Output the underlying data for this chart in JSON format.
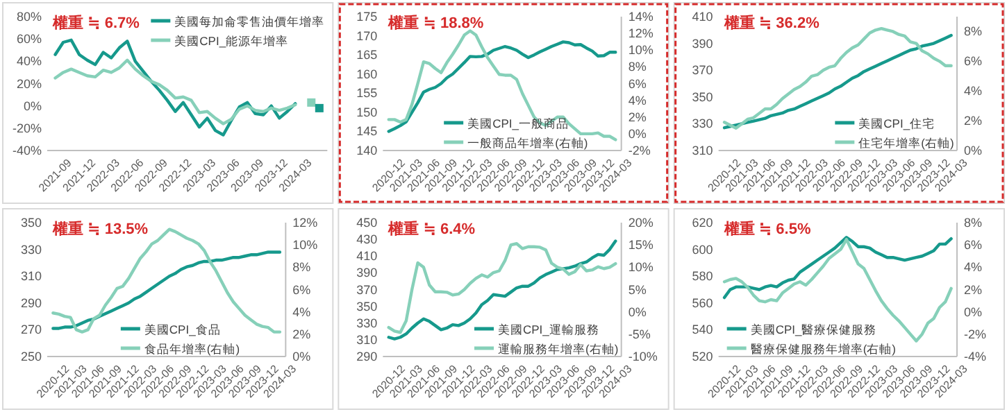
{
  "chart_data": [
    {
      "type": "line",
      "title": "權重 ≒ 6.7%",
      "legend": "top right",
      "x": [
        "2021-09",
        "2021-10",
        "2021-11",
        "2021-12",
        "2022-01",
        "2022-02",
        "2022-03",
        "2022-04",
        "2022-05",
        "2022-06",
        "2022-07",
        "2022-08",
        "2022-09",
        "2022-10",
        "2022-11",
        "2022-12",
        "2023-01",
        "2023-02",
        "2023-03",
        "2023-04",
        "2023-05",
        "2023-06",
        "2023-07",
        "2023-08",
        "2023-09",
        "2023-10",
        "2023-11",
        "2023-12",
        "2024-01",
        "2024-02",
        "2024-03"
      ],
      "xlim": [
        "2021-08",
        "2024-07"
      ],
      "xticks": [
        "2021-09",
        "2021-12",
        "2022-03",
        "2022-06",
        "2022-09",
        "2022-12",
        "2023-03",
        "2023-06",
        "2023-09",
        "2023-12",
        "2024-03"
      ],
      "ylim": [
        -40,
        80
      ],
      "yticks": [
        {
          "value": -40,
          "label": "-40%"
        },
        {
          "value": -20,
          "label": "-20%"
        },
        {
          "value": 0,
          "label": "0%"
        },
        {
          "value": 20,
          "label": "20%"
        },
        {
          "value": 40,
          "label": "40%"
        },
        {
          "value": 60,
          "label": "60%"
        },
        {
          "value": 80,
          "label": "80%"
        }
      ],
      "series": [
        {
          "name": "美國每加侖零售油價年增率",
          "color": "#16998c",
          "values": [
            46,
            57,
            59,
            46,
            41,
            37,
            48,
            43,
            52,
            58,
            40,
            31,
            22,
            14,
            5,
            -5,
            3,
            -8,
            -19,
            -11,
            -22,
            -26,
            -13,
            -1,
            3,
            -7,
            -8,
            0,
            -11,
            -5,
            2
          ]
        },
        {
          "name": "美國CPI_能源年增率",
          "color": "#86d0b9",
          "values": [
            25,
            30,
            33,
            30,
            27,
            26,
            32,
            30,
            34,
            41,
            33,
            27,
            22,
            19,
            14,
            7,
            8,
            5,
            -6,
            -5,
            -11,
            -16,
            -12,
            -3,
            0,
            -4,
            -5,
            -2,
            -4,
            -2,
            1
          ]
        },
        {
          "type": "scatter",
          "marker": "square",
          "color": "#86d0b9",
          "x": [
            "2024-05"
          ],
          "values": [
            3
          ]
        },
        {
          "type": "scatter",
          "marker": "square",
          "color": "#16998c",
          "x": [
            "2024-06"
          ],
          "values": [
            -2
          ]
        }
      ]
    },
    {
      "type": "line",
      "title": "權重 ≒ 18.8%",
      "legend": "bottom",
      "x": [
        "2020-12",
        "2021-01",
        "2021-02",
        "2021-03",
        "2021-04",
        "2021-05",
        "2021-06",
        "2021-07",
        "2021-08",
        "2021-09",
        "2021-10",
        "2021-11",
        "2021-12",
        "2022-01",
        "2022-02",
        "2022-03",
        "2022-04",
        "2022-05",
        "2022-06",
        "2022-07",
        "2022-08",
        "2022-09",
        "2022-10",
        "2022-11",
        "2022-12",
        "2023-01",
        "2023-02",
        "2023-03",
        "2023-04",
        "2023-05",
        "2023-06",
        "2023-07",
        "2023-08",
        "2023-09",
        "2023-10",
        "2023-11",
        "2023-12",
        "2024-01",
        "2024-02",
        "2024-03"
      ],
      "xlim": [
        "2020-11",
        "2024-04"
      ],
      "xticks": [
        "2020-12",
        "2021-03",
        "2021-06",
        "2021-09",
        "2021-12",
        "2022-03",
        "2022-06",
        "2022-09",
        "2022-12",
        "2023-03",
        "2023-06",
        "2023-09",
        "2023-12",
        "2024-03"
      ],
      "ylim": [
        140,
        175
      ],
      "yticks": [
        140,
        145,
        150,
        155,
        160,
        165,
        170,
        175
      ],
      "y2lim": [
        -2,
        14
      ],
      "y2ticks": [
        {
          "value": -2,
          "label": "-2%"
        },
        {
          "value": 0,
          "label": "0%"
        },
        {
          "value": 2,
          "label": "2%"
        },
        {
          "value": 4,
          "label": "4%"
        },
        {
          "value": 6,
          "label": "6%"
        },
        {
          "value": 8,
          "label": "8%"
        },
        {
          "value": 10,
          "label": "10%"
        },
        {
          "value": 12,
          "label": "12%"
        },
        {
          "value": 14,
          "label": "14%"
        }
      ],
      "series": [
        {
          "name": "美國CPI_一般商品",
          "color": "#16998c",
          "values": [
            145,
            145.7,
            146.5,
            147.5,
            150,
            152.5,
            155.3,
            156,
            156.5,
            157.5,
            159,
            160,
            161.5,
            163,
            164.6,
            164.5,
            164.6,
            165.2,
            166.2,
            166.7,
            167.2,
            166.8,
            166.2,
            165.2,
            164.3,
            165,
            165.8,
            166.5,
            167.2,
            167.8,
            168.4,
            168.2,
            167.6,
            167.7,
            166.8,
            166,
            164.7,
            164.8,
            165.7,
            165.7
          ]
        },
        {
          "name": "一般商品年增率(右軸)",
          "color": "#86d0b9",
          "axis": "y2",
          "values": [
            1.7,
            1.7,
            1.4,
            1.7,
            3.5,
            6,
            8.6,
            8.4,
            7.8,
            7.3,
            8.5,
            9.5,
            10.6,
            11.8,
            12.3,
            11.8,
            10.4,
            9.1,
            8.1,
            7.1,
            7.0,
            7.0,
            6.5,
            4.8,
            3.4,
            2.0,
            1.3,
            1.0,
            1.5,
            2.0,
            2.0,
            1.2,
            0.6,
            0.0,
            0.0,
            0.0,
            0.1,
            -0.3,
            -0.3,
            -0.7
          ]
        }
      ]
    },
    {
      "type": "line",
      "title": "權重 ≒ 36.2%",
      "legend": "bottom right",
      "x": [
        "2020-12",
        "2021-01",
        "2021-02",
        "2021-03",
        "2021-04",
        "2021-05",
        "2021-06",
        "2021-07",
        "2021-08",
        "2021-09",
        "2021-10",
        "2021-11",
        "2021-12",
        "2022-01",
        "2022-02",
        "2022-03",
        "2022-04",
        "2022-05",
        "2022-06",
        "2022-07",
        "2022-08",
        "2022-09",
        "2022-10",
        "2022-11",
        "2022-12",
        "2023-01",
        "2023-02",
        "2023-03",
        "2023-04",
        "2023-05",
        "2023-06",
        "2023-07",
        "2023-08",
        "2023-09",
        "2023-10",
        "2023-11",
        "2023-12",
        "2024-01",
        "2024-02",
        "2024-03"
      ],
      "xlim": [
        "2020-11",
        "2024-04"
      ],
      "xticks": [
        "2020-12",
        "2021-03",
        "2021-06",
        "2021-09",
        "2021-12",
        "2022-03",
        "2022-06",
        "2022-09",
        "2022-12",
        "2023-03",
        "2023-06",
        "2023-09",
        "2023-12",
        "2024-03"
      ],
      "ylim": [
        310,
        410
      ],
      "yticks": [
        310,
        330,
        350,
        370,
        390,
        410
      ],
      "y2lim": [
        0,
        9
      ],
      "y2ticks": [
        {
          "value": 0,
          "label": "0%"
        },
        {
          "value": 2,
          "label": "2%"
        },
        {
          "value": 4,
          "label": "4%"
        },
        {
          "value": 6,
          "label": "6%"
        },
        {
          "value": 8,
          "label": "8%"
        }
      ],
      "series": [
        {
          "name": "美國CPI_住宅",
          "color": "#16998c",
          "values": [
            327,
            328,
            329,
            330,
            331,
            332,
            333,
            334,
            336,
            337,
            338,
            340,
            341,
            343,
            345,
            347,
            349,
            351,
            353,
            356,
            358,
            361,
            364,
            366,
            369,
            371,
            373,
            375,
            377,
            379,
            381,
            383,
            385,
            386,
            388,
            389,
            390,
            392,
            394,
            396
          ]
        },
        {
          "name": "住宅年增率(右軸)",
          "color": "#86d0b9",
          "axis": "y2",
          "values": [
            1.9,
            1.7,
            1.5,
            1.8,
            2.1,
            2.2,
            2.5,
            2.8,
            2.8,
            3.1,
            3.5,
            3.8,
            4.1,
            4.3,
            4.6,
            5.0,
            5.1,
            5.4,
            5.6,
            5.7,
            6.2,
            6.6,
            6.9,
            7.1,
            7.5,
            7.9,
            8.1,
            8.2,
            8.1,
            8.0,
            7.8,
            7.7,
            7.3,
            7.2,
            6.7,
            6.5,
            6.2,
            6.0,
            5.7,
            5.7
          ]
        }
      ]
    },
    {
      "type": "line",
      "title": "權重 ≒ 13.5%",
      "legend": "bottom",
      "x": [
        "2020-12",
        "2021-01",
        "2021-02",
        "2021-03",
        "2021-04",
        "2021-05",
        "2021-06",
        "2021-07",
        "2021-08",
        "2021-09",
        "2021-10",
        "2021-11",
        "2021-12",
        "2022-01",
        "2022-02",
        "2022-03",
        "2022-04",
        "2022-05",
        "2022-06",
        "2022-07",
        "2022-08",
        "2022-09",
        "2022-10",
        "2022-11",
        "2022-12",
        "2023-01",
        "2023-02",
        "2023-03",
        "2023-04",
        "2023-05",
        "2023-06",
        "2023-07",
        "2023-08",
        "2023-09",
        "2023-10",
        "2023-11",
        "2023-12",
        "2024-01",
        "2024-02",
        "2024-03"
      ],
      "xlim": [
        "2020-11",
        "2024-04"
      ],
      "xticks": [
        "2020-12",
        "2021-03",
        "2021-06",
        "2021-09",
        "2021-12",
        "2022-03",
        "2022-06",
        "2022-09",
        "2022-12",
        "2023-03",
        "2023-06",
        "2023-09",
        "2023-12",
        "2024-03"
      ],
      "ylim": [
        250,
        350
      ],
      "yticks": [
        250,
        270,
        290,
        310,
        330,
        350
      ],
      "y2lim": [
        0,
        12
      ],
      "y2ticks": [
        {
          "value": 0,
          "label": "0%"
        },
        {
          "value": 2,
          "label": "2%"
        },
        {
          "value": 4,
          "label": "4%"
        },
        {
          "value": 6,
          "label": "6%"
        },
        {
          "value": 8,
          "label": "8%"
        },
        {
          "value": 10,
          "label": "10%"
        },
        {
          "value": 12,
          "label": "12%"
        }
      ],
      "series": [
        {
          "name": "美國CPI_食品",
          "color": "#16998c",
          "values": [
            271,
            271,
            272,
            272,
            273,
            275,
            277,
            278,
            280,
            282,
            284,
            286,
            288,
            290,
            293,
            295,
            298,
            301,
            304,
            307,
            310,
            312,
            315,
            317,
            318,
            320,
            321,
            321,
            322,
            322,
            323,
            324,
            324,
            325,
            326,
            326,
            327,
            328,
            328,
            328
          ]
        },
        {
          "name": "食品年增率(右軸)",
          "color": "#86d0b9",
          "axis": "y2",
          "values": [
            3.9,
            3.8,
            3.6,
            3.5,
            2.4,
            2.2,
            2.4,
            3.4,
            3.7,
            4.6,
            5.3,
            6.1,
            6.3,
            7.0,
            7.9,
            8.8,
            9.4,
            10.1,
            10.4,
            10.9,
            11.4,
            11.2,
            10.9,
            10.6,
            10.4,
            10.1,
            9.5,
            8.5,
            7.7,
            6.7,
            5.7,
            4.9,
            4.3,
            3.7,
            3.3,
            2.9,
            2.7,
            2.6,
            2.2,
            2.2
          ]
        }
      ]
    },
    {
      "type": "line",
      "title": "權重 ≒ 6.4%",
      "legend": "bottom right",
      "x": [
        "2020-12",
        "2021-01",
        "2021-02",
        "2021-03",
        "2021-04",
        "2021-05",
        "2021-06",
        "2021-07",
        "2021-08",
        "2021-09",
        "2021-10",
        "2021-11",
        "2021-12",
        "2022-01",
        "2022-02",
        "2022-03",
        "2022-04",
        "2022-05",
        "2022-06",
        "2022-07",
        "2022-08",
        "2022-09",
        "2022-10",
        "2022-11",
        "2022-12",
        "2023-01",
        "2023-02",
        "2023-03",
        "2023-04",
        "2023-05",
        "2023-06",
        "2023-07",
        "2023-08",
        "2023-09",
        "2023-10",
        "2023-11",
        "2023-12",
        "2024-01",
        "2024-02",
        "2024-03"
      ],
      "xlim": [
        "2020-11",
        "2024-04"
      ],
      "xticks": [
        "2020-12",
        "2021-03",
        "2021-06",
        "2021-09",
        "2021-12",
        "2022-03",
        "2022-06",
        "2022-09",
        "2022-12",
        "2023-03",
        "2023-06",
        "2023-09",
        "2023-12",
        "2024-03"
      ],
      "ylim": [
        290,
        450
      ],
      "yticks": [
        290,
        310,
        330,
        350,
        370,
        390,
        410,
        430,
        450
      ],
      "y2lim": [
        -10,
        20
      ],
      "y2ticks": [
        {
          "value": -10,
          "label": "-10%"
        },
        {
          "value": -5,
          "label": "-5%"
        },
        {
          "value": 0,
          "label": "0%"
        },
        {
          "value": 5,
          "label": "5%"
        },
        {
          "value": 10,
          "label": "10%"
        },
        {
          "value": 15,
          "label": "15%"
        },
        {
          "value": 20,
          "label": "20%"
        }
      ],
      "series": [
        {
          "name": "美國CPI_運輸服務",
          "color": "#16998c",
          "values": [
            313,
            311,
            313,
            317,
            324,
            330,
            335,
            332,
            327,
            322,
            324,
            328,
            327,
            330,
            335,
            342,
            352,
            357,
            364,
            363,
            362,
            367,
            372,
            374,
            374,
            378,
            384,
            388,
            391,
            394,
            395,
            396,
            398,
            401,
            403,
            408,
            412,
            411,
            418,
            428
          ]
        },
        {
          "name": "運輸服務年增率(右軸)",
          "color": "#86d0b9",
          "axis": "y2",
          "values": [
            -3.5,
            -4.3,
            -4.6,
            -2,
            5,
            11,
            10,
            6,
            4.5,
            4.5,
            4.4,
            3.8,
            4.0,
            5,
            6.4,
            7.5,
            8.3,
            7.8,
            8.8,
            9.2,
            11.5,
            15,
            15.3,
            14.2,
            14.6,
            14.6,
            14.5,
            13.9,
            10.9,
            10,
            9.6,
            8.4,
            9.0,
            10.6,
            9.2,
            9.4,
            10.1,
            9.7,
            10.0,
            10.8
          ]
        }
      ]
    },
    {
      "type": "line",
      "title": "權重 ≒ 6.5%",
      "legend": "bottom left",
      "x": [
        "2020-12",
        "2021-01",
        "2021-02",
        "2021-03",
        "2021-04",
        "2021-05",
        "2021-06",
        "2021-07",
        "2021-08",
        "2021-09",
        "2021-10",
        "2021-11",
        "2021-12",
        "2022-01",
        "2022-02",
        "2022-03",
        "2022-04",
        "2022-05",
        "2022-06",
        "2022-07",
        "2022-08",
        "2022-09",
        "2022-10",
        "2022-11",
        "2022-12",
        "2023-01",
        "2023-02",
        "2023-03",
        "2023-04",
        "2023-05",
        "2023-06",
        "2023-07",
        "2023-08",
        "2023-09",
        "2023-10",
        "2023-11",
        "2023-12",
        "2024-01",
        "2024-02",
        "2024-03"
      ],
      "xlim": [
        "2020-11",
        "2024-04"
      ],
      "xticks": [
        "2020-12",
        "2021-03",
        "2021-06",
        "2021-09",
        "2021-12",
        "2022-03",
        "2022-06",
        "2022-09",
        "2022-12",
        "2023-03",
        "2023-06",
        "2023-09",
        "2023-12",
        "2024-03"
      ],
      "ylim": [
        520,
        620
      ],
      "yticks": [
        520,
        540,
        560,
        580,
        600,
        620
      ],
      "y2lim": [
        -4,
        8
      ],
      "y2ticks": [
        {
          "value": -4,
          "label": "-4%"
        },
        {
          "value": -2,
          "label": "-2%"
        },
        {
          "value": 0,
          "label": "0%"
        },
        {
          "value": 2,
          "label": "2%"
        },
        {
          "value": 4,
          "label": "4%"
        },
        {
          "value": 6,
          "label": "6%"
        },
        {
          "value": 8,
          "label": "8%"
        }
      ],
      "series": [
        {
          "name": "美國CPI_醫療保健服務",
          "color": "#16998c",
          "values": [
            564,
            570,
            572,
            572,
            572,
            571,
            570,
            572,
            573,
            572,
            575,
            577,
            578,
            583,
            586,
            589,
            592,
            595,
            598,
            601,
            605,
            609,
            606,
            602,
            602,
            601,
            598,
            596,
            594,
            594,
            593,
            592,
            593,
            594,
            595,
            597,
            599,
            604,
            604,
            608
          ]
        },
        {
          "name": "醫療保健服務年增率(右軸)",
          "color": "#86d0b9",
          "axis": "y2",
          "values": [
            2.7,
            2.9,
            3.0,
            2.7,
            2.2,
            1.5,
            1.0,
            0.9,
            1.1,
            1.0,
            1.7,
            2.1,
            2.5,
            2.7,
            2.4,
            2.9,
            3.5,
            4.1,
            4.8,
            5.2,
            5.6,
            6.5,
            5.4,
            4.3,
            3.9,
            2.9,
            1.9,
            1.0,
            0.3,
            -0.3,
            -0.8,
            -1.4,
            -2.0,
            -2.6,
            -2.0,
            -1.0,
            -0.6,
            0.4,
            0.9,
            2.1
          ]
        }
      ]
    }
  ]
}
